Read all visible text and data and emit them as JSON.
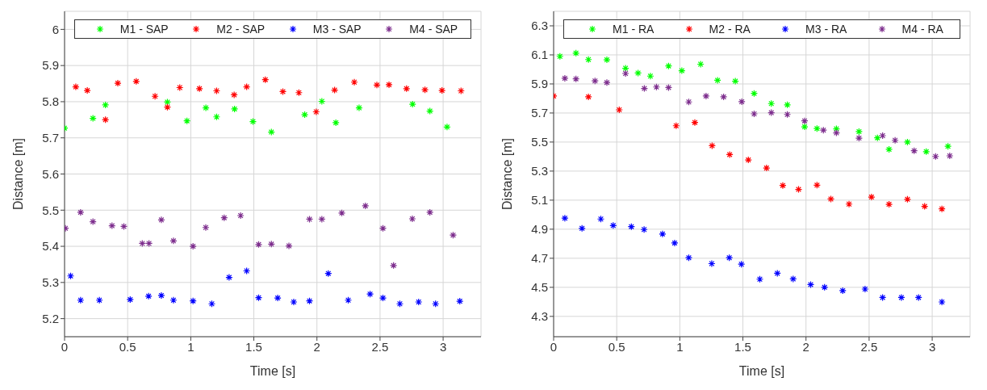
{
  "chart_data": [
    {
      "type": "scatter",
      "xlabel": "Time [s]",
      "ylabel": "Distance [m]",
      "xlim": [
        0,
        3.3
      ],
      "xticks": [
        0,
        0.5,
        1,
        1.5,
        2,
        2.5,
        3
      ],
      "ylim": [
        5.15,
        6.05
      ],
      "yticks": [
        5.2,
        5.3,
        5.4,
        5.5,
        5.6,
        5.7,
        5.8,
        5.9,
        6
      ],
      "grid": true,
      "legend": "top",
      "marker": "cross",
      "series": [
        {
          "name": "M1 - SAP",
          "color": "#00ff00",
          "x": [
            0,
            0.225,
            0.324,
            0.815,
            0.97,
            1.12,
            1.205,
            1.347,
            1.493,
            1.639,
            1.903,
            2.039,
            2.15,
            2.334,
            2.758,
            2.895,
            3.031
          ],
          "values": [
            5.727,
            5.754,
            5.791,
            5.799,
            5.747,
            5.783,
            5.758,
            5.78,
            5.745,
            5.716,
            5.764,
            5.801,
            5.742,
            5.783,
            5.793,
            5.774,
            5.73
          ]
        },
        {
          "name": "M2 - SAP",
          "color": "#ff0000",
          "x": [
            0.089,
            0.18,
            0.324,
            0.422,
            0.568,
            0.717,
            0.815,
            0.913,
            1.069,
            1.205,
            1.344,
            1.443,
            1.591,
            1.73,
            1.857,
            1.994,
            2.14,
            2.296,
            2.475,
            2.571,
            2.71,
            2.856,
            2.991,
            3.142
          ],
          "values": [
            5.841,
            5.831,
            5.75,
            5.851,
            5.856,
            5.815,
            5.785,
            5.839,
            5.836,
            5.83,
            5.819,
            5.841,
            5.861,
            5.828,
            5.825,
            5.772,
            5.832,
            5.854,
            5.846,
            5.847,
            5.836,
            5.833,
            5.831,
            5.83
          ]
        },
        {
          "name": "M3 - SAP",
          "color": "#0000ff",
          "x": [
            0.048,
            0.127,
            0.276,
            0.52,
            0.666,
            0.767,
            0.863,
            1.018,
            1.167,
            1.304,
            1.443,
            1.538,
            1.689,
            1.816,
            1.941,
            2.09,
            2.248,
            2.421,
            2.523,
            2.657,
            2.806,
            2.94,
            3.132
          ],
          "values": [
            5.318,
            5.251,
            5.251,
            5.253,
            5.262,
            5.264,
            5.251,
            5.249,
            5.241,
            5.314,
            5.332,
            5.258,
            5.257,
            5.246,
            5.249,
            5.325,
            5.251,
            5.268,
            5.257,
            5.241,
            5.246,
            5.241,
            5.248
          ]
        },
        {
          "name": "M4 - SAP",
          "color": "#7e2f8e",
          "x": [
            0.007,
            0.127,
            0.225,
            0.376,
            0.47,
            0.616,
            0.669,
            0.767,
            0.863,
            1.018,
            1.119,
            1.265,
            1.395,
            1.538,
            1.639,
            1.778,
            1.941,
            2.039,
            2.197,
            2.384,
            2.523,
            2.607,
            2.756,
            2.895,
            3.079
          ],
          "values": [
            5.45,
            5.494,
            5.468,
            5.457,
            5.455,
            5.408,
            5.408,
            5.473,
            5.415,
            5.4,
            5.452,
            5.479,
            5.485,
            5.405,
            5.406,
            5.401,
            5.475,
            5.475,
            5.492,
            5.512,
            5.45,
            5.347,
            5.476,
            5.494,
            5.431
          ]
        }
      ]
    },
    {
      "type": "scatter",
      "xlabel": "Time [s]",
      "ylabel": "Distance [m]",
      "xlim": [
        0,
        3.3
      ],
      "xticks": [
        0,
        0.5,
        1,
        1.5,
        2,
        2.5,
        3
      ],
      "ylim": [
        4.16,
        6.4
      ],
      "yticks": [
        4.3,
        4.5,
        4.7,
        4.9,
        5.1,
        5.3,
        5.5,
        5.7,
        5.9,
        6.1,
        6.3
      ],
      "grid": true,
      "legend": "top",
      "marker": "cross",
      "series": [
        {
          "name": "M1 - RA",
          "color": "#00ff00",
          "x": [
            0.05,
            0.177,
            0.276,
            0.422,
            0.57,
            0.669,
            0.767,
            0.911,
            1.016,
            1.165,
            1.299,
            1.44,
            1.589,
            1.725,
            1.852,
            1.989,
            2.087,
            2.241,
            2.42,
            2.566,
            2.658,
            2.804,
            2.953,
            3.125
          ],
          "values": [
            6.09,
            6.112,
            6.068,
            6.066,
            6.008,
            5.975,
            5.954,
            6.024,
            5.991,
            6.036,
            5.925,
            5.919,
            5.835,
            5.765,
            5.756,
            5.605,
            5.593,
            5.591,
            5.572,
            5.529,
            5.45,
            5.5,
            5.434,
            5.471
          ]
        },
        {
          "name": "M2 - RA",
          "color": "#ff0000",
          "x": [
            0,
            0.276,
            0.52,
            0.971,
            1.119,
            1.256,
            1.395,
            1.543,
            1.687,
            1.816,
            1.941,
            2.087,
            2.197,
            2.341,
            2.519,
            2.658,
            2.804,
            2.94,
            3.077
          ],
          "values": [
            5.817,
            5.811,
            5.722,
            5.612,
            5.635,
            5.475,
            5.414,
            5.377,
            5.321,
            5.201,
            5.174,
            5.203,
            5.108,
            5.073,
            5.121,
            5.071,
            5.106,
            5.057,
            5.04
          ]
        },
        {
          "name": "M3 - RA",
          "color": "#0000ff",
          "x": [
            0.089,
            0.225,
            0.374,
            0.472,
            0.616,
            0.717,
            0.863,
            0.959,
            1.071,
            1.253,
            1.392,
            1.488,
            1.634,
            1.773,
            1.898,
            2.037,
            2.147,
            2.291,
            2.468,
            2.607,
            2.756,
            2.892,
            3.077
          ],
          "values": [
            4.976,
            4.906,
            4.97,
            4.925,
            4.918,
            4.898,
            4.867,
            4.805,
            4.704,
            4.663,
            4.704,
            4.659,
            4.556,
            4.597,
            4.558,
            4.519,
            4.5,
            4.477,
            4.488,
            4.43,
            4.43,
            4.43,
            4.399
          ]
        },
        {
          "name": "M4 - RA",
          "color": "#7e2f8e",
          "x": [
            0.089,
            0.177,
            0.328,
            0.422,
            0.57,
            0.719,
            0.815,
            0.911,
            1.071,
            1.208,
            1.347,
            1.491,
            1.589,
            1.725,
            1.852,
            1.989,
            2.138,
            2.241,
            2.42,
            2.607,
            2.706,
            2.857,
            3.027,
            3.139
          ],
          "values": [
            5.939,
            5.935,
            5.921,
            5.91,
            5.972,
            5.869,
            5.879,
            5.875,
            5.776,
            5.817,
            5.811,
            5.778,
            5.694,
            5.702,
            5.69,
            5.646,
            5.582,
            5.563,
            5.527,
            5.544,
            5.512,
            5.44,
            5.401,
            5.405
          ]
        }
      ]
    }
  ]
}
